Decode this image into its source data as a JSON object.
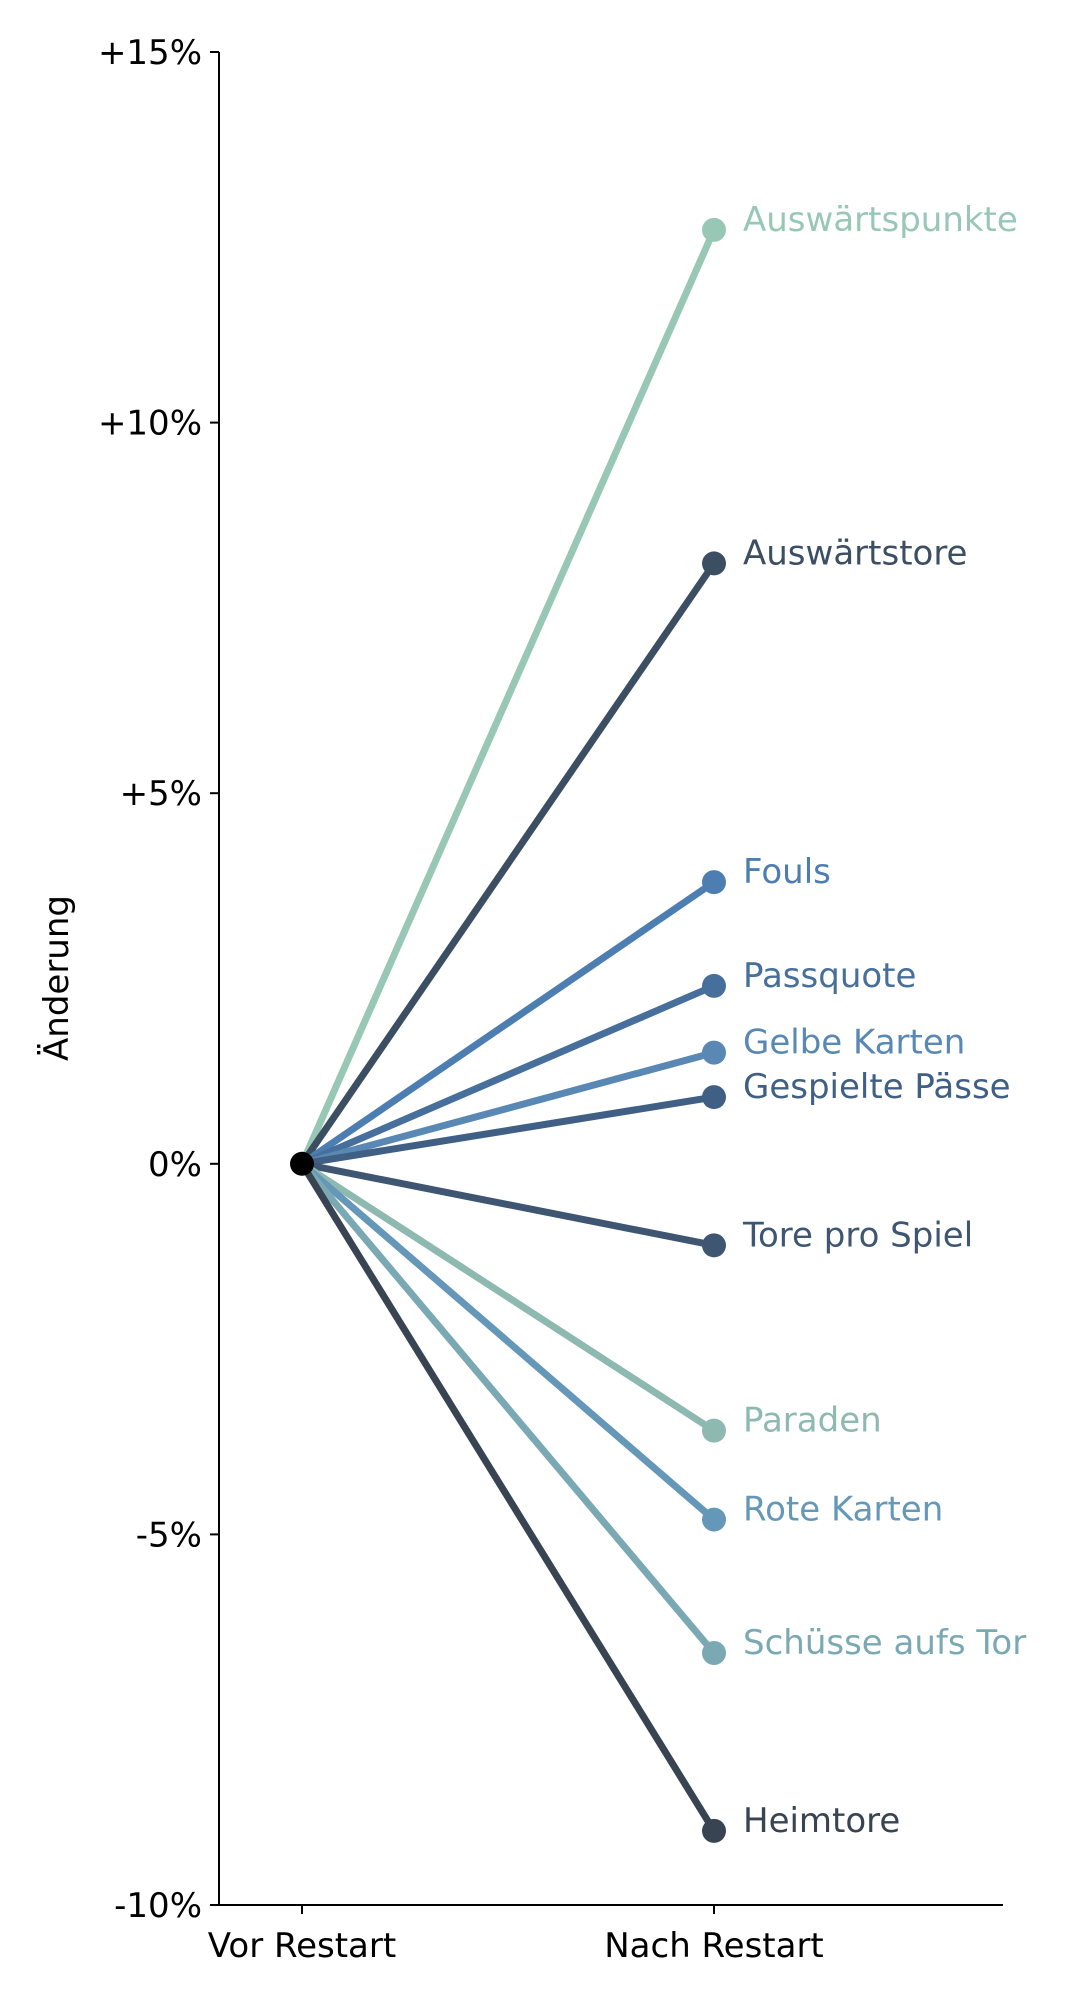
{
  "chart_data": {
    "type": "line",
    "xlabel": "",
    "ylabel": "Änderung",
    "categories": [
      "Vor Restart",
      "Nach Restart"
    ],
    "ylim": [
      -10,
      15
    ],
    "yticks": [
      {
        "value": 15,
        "label": "+15%"
      },
      {
        "value": 10,
        "label": "+10%"
      },
      {
        "value": 5,
        "label": "+5%"
      },
      {
        "value": 0,
        "label": "0%"
      },
      {
        "value": -5,
        "label": "-5%"
      },
      {
        "value": -10,
        "label": "-10%"
      }
    ],
    "origin_color": "#000000",
    "series": [
      {
        "name": "Auswärtspunkte",
        "values": [
          0,
          12.6
        ],
        "color": "#98c7b6"
      },
      {
        "name": "Auswärtstore",
        "values": [
          0,
          8.1
        ],
        "color": "#3b4e62"
      },
      {
        "name": "Fouls",
        "values": [
          0,
          3.8
        ],
        "color": "#4d7eb2"
      },
      {
        "name": "Passquote",
        "values": [
          0,
          2.4
        ],
        "color": "#466f9b"
      },
      {
        "name": "Gelbe Karten",
        "values": [
          0,
          1.5
        ],
        "color": "#5888b3"
      },
      {
        "name": "Gespielte Pässe",
        "values": [
          0,
          0.9
        ],
        "color": "#3f5f85"
      },
      {
        "name": "Tore pro Spiel",
        "values": [
          0,
          -1.1
        ],
        "color": "#3e5672"
      },
      {
        "name": "Paraden",
        "values": [
          0,
          -3.6
        ],
        "color": "#8db9b1"
      },
      {
        "name": "Rote Karten",
        "values": [
          0,
          -4.8
        ],
        "color": "#6598b8"
      },
      {
        "name": "Schüsse aufs Tor",
        "values": [
          0,
          -6.6
        ],
        "color": "#7aa9b4"
      },
      {
        "name": "Heimtore",
        "values": [
          0,
          -9.0
        ],
        "color": "#384452"
      }
    ]
  }
}
